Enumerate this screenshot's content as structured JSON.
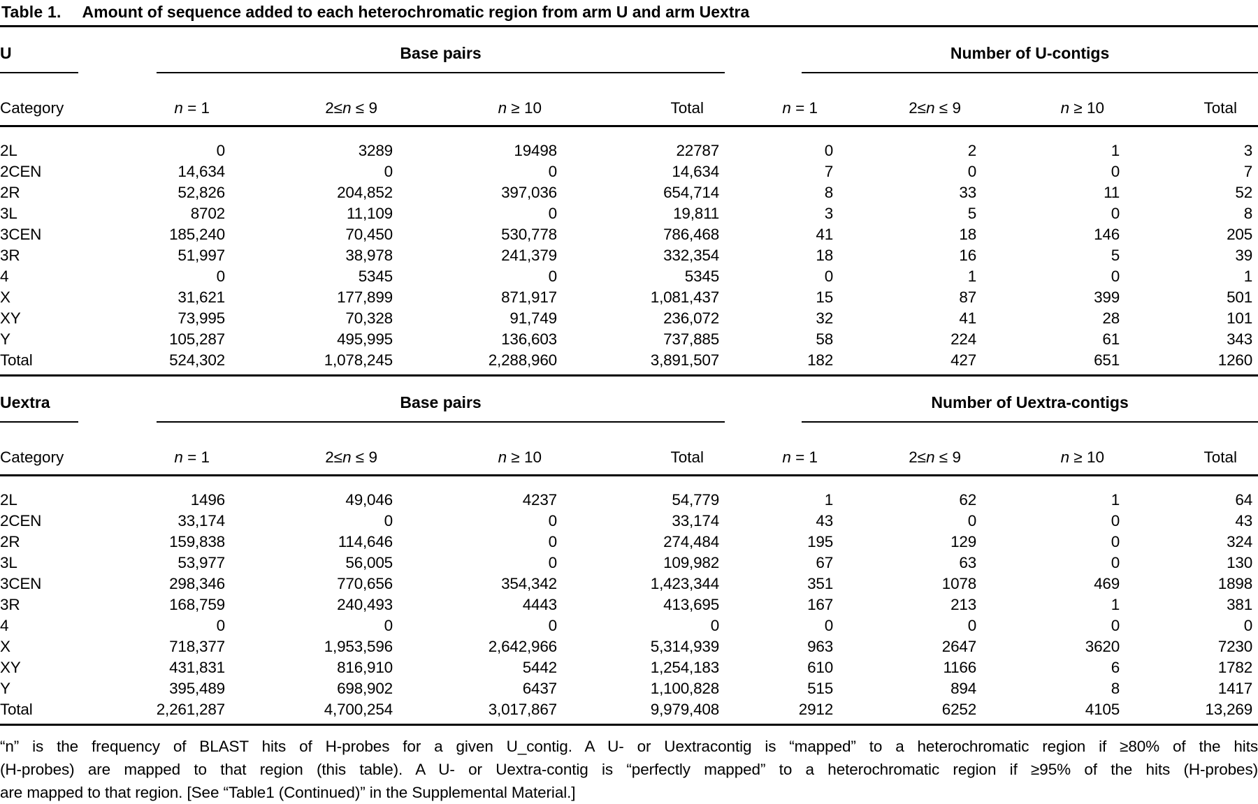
{
  "title": {
    "label": "Table 1.",
    "text": "Amount of sequence added to each heterochromatic region from arm U and arm Uextra"
  },
  "col_headers": {
    "category": "Category",
    "n1": {
      "pre": "",
      "n": "n",
      "post": " = 1"
    },
    "n2to9": {
      "pre": "2≤",
      "n": "n",
      "post": " ≤ 9"
    },
    "n10": {
      "pre": "",
      "n": "n",
      "post": " ≥ 10"
    },
    "total": "Total"
  },
  "sections": [
    {
      "stub": "U",
      "group1": "Base pairs",
      "group2": "Number of U-contigs",
      "rows": [
        {
          "category": "2L",
          "bp": [
            "0",
            "3289",
            "19498",
            "22787"
          ],
          "contigs": [
            "0",
            "2",
            "1",
            "3"
          ]
        },
        {
          "category": "2CEN",
          "bp": [
            "14,634",
            "0",
            "0",
            "14,634"
          ],
          "contigs": [
            "7",
            "0",
            "0",
            "7"
          ]
        },
        {
          "category": "2R",
          "bp": [
            "52,826",
            "204,852",
            "397,036",
            "654,714"
          ],
          "contigs": [
            "8",
            "33",
            "11",
            "52"
          ]
        },
        {
          "category": "3L",
          "bp": [
            "8702",
            "11,109",
            "0",
            "19,811"
          ],
          "contigs": [
            "3",
            "5",
            "0",
            "8"
          ]
        },
        {
          "category": "3CEN",
          "bp": [
            "185,240",
            "70,450",
            "530,778",
            "786,468"
          ],
          "contigs": [
            "41",
            "18",
            "146",
            "205"
          ]
        },
        {
          "category": "3R",
          "bp": [
            "51,997",
            "38,978",
            "241,379",
            "332,354"
          ],
          "contigs": [
            "18",
            "16",
            "5",
            "39"
          ]
        },
        {
          "category": "4",
          "bp": [
            "0",
            "5345",
            "0",
            "5345"
          ],
          "contigs": [
            "0",
            "1",
            "0",
            "1"
          ]
        },
        {
          "category": "X",
          "bp": [
            "31,621",
            "177,899",
            "871,917",
            "1,081,437"
          ],
          "contigs": [
            "15",
            "87",
            "399",
            "501"
          ]
        },
        {
          "category": "XY",
          "bp": [
            "73,995",
            "70,328",
            "91,749",
            "236,072"
          ],
          "contigs": [
            "32",
            "41",
            "28",
            "101"
          ]
        },
        {
          "category": "Y",
          "bp": [
            "105,287",
            "495,995",
            "136,603",
            "737,885"
          ],
          "contigs": [
            "58",
            "224",
            "61",
            "343"
          ]
        },
        {
          "category": "Total",
          "bp": [
            "524,302",
            "1,078,245",
            "2,288,960",
            "3,891,507"
          ],
          "contigs": [
            "182",
            "427",
            "651",
            "1260"
          ]
        }
      ]
    },
    {
      "stub": "Uextra",
      "group1": "Base pairs",
      "group2": "Number of Uextra-contigs",
      "rows": [
        {
          "category": "2L",
          "bp": [
            "1496",
            "49,046",
            "4237",
            "54,779"
          ],
          "contigs": [
            "1",
            "62",
            "1",
            "64"
          ]
        },
        {
          "category": "2CEN",
          "bp": [
            "33,174",
            "0",
            "0",
            "33,174"
          ],
          "contigs": [
            "43",
            "0",
            "0",
            "43"
          ]
        },
        {
          "category": "2R",
          "bp": [
            "159,838",
            "114,646",
            "0",
            "274,484"
          ],
          "contigs": [
            "195",
            "129",
            "0",
            "324"
          ]
        },
        {
          "category": "3L",
          "bp": [
            "53,977",
            "56,005",
            "0",
            "109,982"
          ],
          "contigs": [
            "67",
            "63",
            "0",
            "130"
          ]
        },
        {
          "category": "3CEN",
          "bp": [
            "298,346",
            "770,656",
            "354,342",
            "1,423,344"
          ],
          "contigs": [
            "351",
            "1078",
            "469",
            "1898"
          ]
        },
        {
          "category": "3R",
          "bp": [
            "168,759",
            "240,493",
            "4443",
            "413,695"
          ],
          "contigs": [
            "167",
            "213",
            "1",
            "381"
          ]
        },
        {
          "category": "4",
          "bp": [
            "0",
            "0",
            "0",
            "0"
          ],
          "contigs": [
            "0",
            "0",
            "0",
            "0"
          ]
        },
        {
          "category": "X",
          "bp": [
            "718,377",
            "1,953,596",
            "2,642,966",
            "5,314,939"
          ],
          "contigs": [
            "963",
            "2647",
            "3620",
            "7230"
          ]
        },
        {
          "category": "XY",
          "bp": [
            "431,831",
            "816,910",
            "5442",
            "1,254,183"
          ],
          "contigs": [
            "610",
            "1166",
            "6",
            "1782"
          ]
        },
        {
          "category": "Y",
          "bp": [
            "395,489",
            "698,902",
            "6437",
            "1,100,828"
          ],
          "contigs": [
            "515",
            "894",
            "8",
            "1417"
          ]
        },
        {
          "category": "Total",
          "bp": [
            "2,261,287",
            "4,700,254",
            "3,017,867",
            "9,979,408"
          ],
          "contigs": [
            "2912",
            "6252",
            "4105",
            "13,269"
          ]
        }
      ]
    }
  ],
  "footnote": {
    "lines": [
      "“n” is the frequency of BLAST hits of H-probes for a given U_contig. A U- or Uextracontig is “mapped” to a heterochromatic region if ≥80% of the hits",
      "(H-probes) are mapped to that region (this table). A U- or Uextra-contig is “perfectly mapped” to a heterochromatic region if ≥95% of the hits (H-probes)",
      "are mapped to that region. [See “Table1 (Continued)” in the Supplemental Material.]"
    ]
  }
}
